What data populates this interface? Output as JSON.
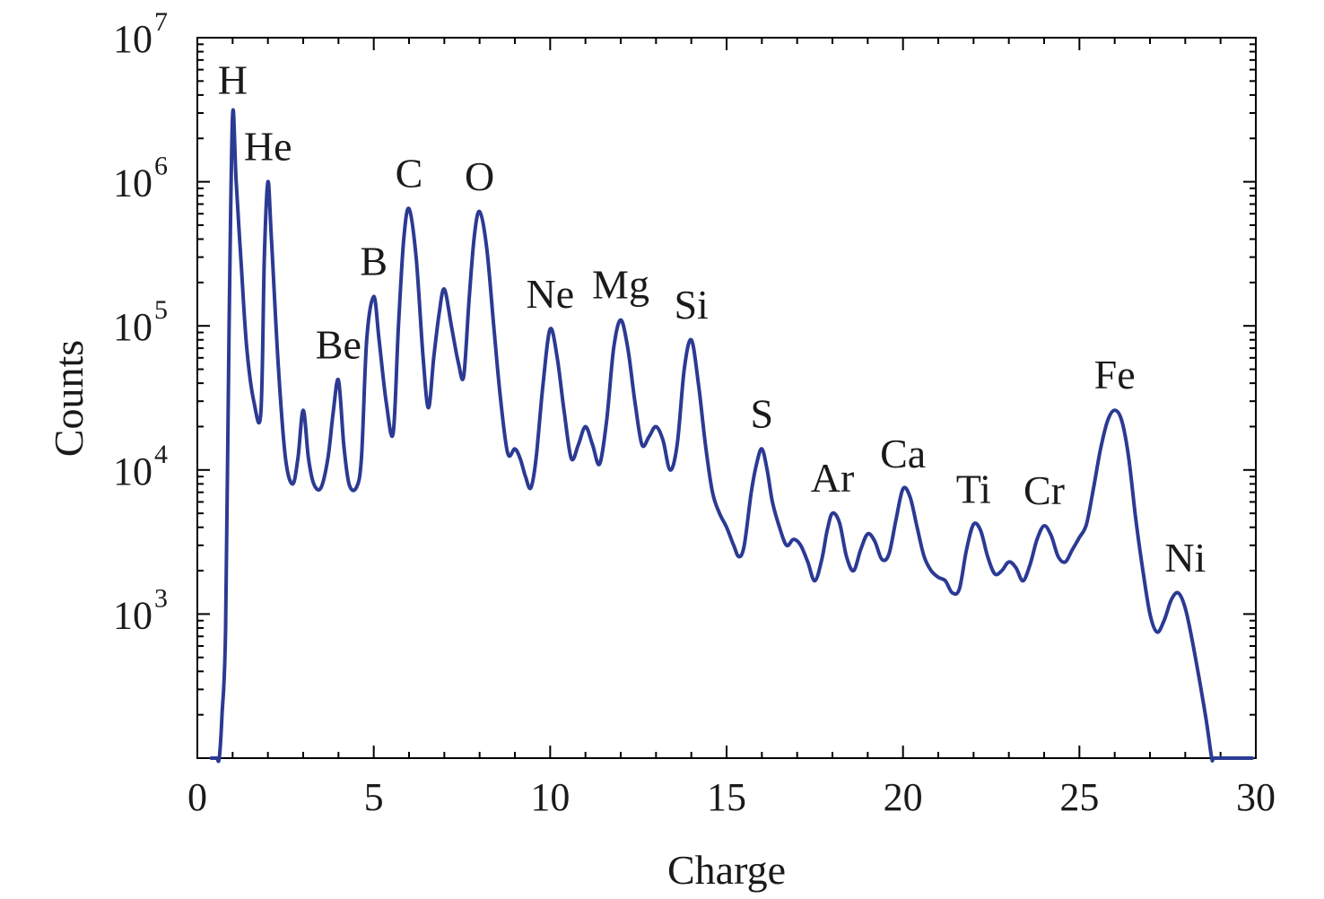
{
  "chart_data": {
    "type": "line",
    "xlabel": "Charge",
    "ylabel": "Counts",
    "xlim": [
      0,
      30
    ],
    "ylim": [
      100,
      10000000
    ],
    "yscale": "log",
    "grid": false,
    "x_ticks": [
      "0",
      "5",
      "10",
      "15",
      "20",
      "25",
      "30"
    ],
    "y_ticks": [
      {
        "base": "10",
        "exp": "3",
        "value": 1000
      },
      {
        "base": "10",
        "exp": "4",
        "value": 10000
      },
      {
        "base": "10",
        "exp": "5",
        "value": 100000
      },
      {
        "base": "10",
        "exp": "6",
        "value": 1000000
      },
      {
        "base": "10",
        "exp": "7",
        "value": 10000000
      }
    ],
    "series": [
      {
        "color": "#2b3a93",
        "x": [
          0.4,
          0.55,
          0.62,
          0.7,
          0.8,
          0.9,
          1.0,
          1.1,
          1.25,
          1.4,
          1.6,
          1.8,
          1.9,
          2.0,
          2.1,
          2.3,
          2.5,
          2.7,
          2.85,
          3.0,
          3.15,
          3.3,
          3.5,
          3.7,
          3.85,
          4.0,
          4.15,
          4.3,
          4.5,
          4.65,
          4.8,
          5.0,
          5.15,
          5.35,
          5.55,
          5.7,
          5.85,
          6.0,
          6.2,
          6.4,
          6.55,
          6.7,
          6.85,
          7.0,
          7.2,
          7.4,
          7.55,
          7.7,
          7.85,
          8.0,
          8.2,
          8.4,
          8.6,
          8.8,
          9.0,
          9.15,
          9.3,
          9.45,
          9.6,
          9.8,
          10.0,
          10.2,
          10.4,
          10.6,
          10.8,
          11.0,
          11.2,
          11.4,
          11.6,
          11.8,
          12.0,
          12.2,
          12.4,
          12.6,
          12.8,
          13.0,
          13.2,
          13.4,
          13.6,
          13.8,
          14.0,
          14.2,
          14.4,
          14.6,
          14.8,
          15.0,
          15.2,
          15.35,
          15.5,
          15.7,
          15.85,
          16.0,
          16.15,
          16.3,
          16.5,
          16.7,
          16.9,
          17.1,
          17.3,
          17.5,
          17.7,
          17.85,
          18.0,
          18.2,
          18.4,
          18.6,
          18.8,
          19.0,
          19.2,
          19.4,
          19.6,
          19.8,
          20.0,
          20.2,
          20.4,
          20.6,
          20.8,
          21.0,
          21.2,
          21.4,
          21.6,
          21.8,
          22.0,
          22.2,
          22.4,
          22.6,
          22.8,
          23.0,
          23.2,
          23.4,
          23.6,
          23.8,
          24.0,
          24.2,
          24.4,
          24.6,
          24.8,
          25.0,
          25.2,
          25.4,
          25.6,
          25.8,
          26.0,
          26.2,
          26.4,
          26.6,
          26.8,
          27.0,
          27.2,
          27.4,
          27.6,
          27.8,
          28.0,
          28.2,
          28.4,
          28.6,
          28.75,
          28.8,
          29.0,
          29.3,
          29.6,
          29.9
        ],
        "y": [
          100,
          100,
          100,
          200,
          800,
          100000,
          2900000,
          1000000,
          250000,
          70000,
          30000,
          25000,
          300000,
          1000000,
          400000,
          50000,
          12000,
          8000,
          12000,
          26000,
          12000,
          8000,
          7500,
          12000,
          25000,
          42000,
          15000,
          8000,
          7500,
          12000,
          80000,
          160000,
          80000,
          30000,
          18000,
          100000,
          400000,
          650000,
          300000,
          60000,
          27000,
          60000,
          120000,
          180000,
          100000,
          55000,
          45000,
          150000,
          420000,
          620000,
          350000,
          100000,
          30000,
          13000,
          14000,
          12000,
          9000,
          7500,
          12000,
          40000,
          95000,
          60000,
          25000,
          12000,
          15000,
          20000,
          15000,
          11000,
          22000,
          70000,
          110000,
          70000,
          30000,
          15000,
          17000,
          20000,
          16000,
          10000,
          15000,
          50000,
          80000,
          40000,
          15000,
          7000,
          5000,
          4000,
          3000,
          2500,
          3000,
          7000,
          11000,
          14000,
          10000,
          6000,
          4000,
          3000,
          3300,
          3000,
          2300,
          1700,
          2400,
          3800,
          5000,
          4300,
          2500,
          2000,
          2800,
          3600,
          3200,
          2400,
          2600,
          4500,
          7400,
          6500,
          4000,
          2500,
          2000,
          1800,
          1700,
          1400,
          1500,
          2800,
          4200,
          3800,
          2500,
          1900,
          2000,
          2300,
          2100,
          1700,
          2200,
          3300,
          4100,
          3500,
          2500,
          2300,
          2800,
          3400,
          4200,
          7500,
          14000,
          22000,
          26000,
          22000,
          12000,
          4500,
          2000,
          1000,
          750,
          900,
          1250,
          1400,
          1100,
          650,
          350,
          180,
          100,
          100,
          100,
          100,
          100,
          100
        ]
      }
    ],
    "peak_labels": [
      {
        "text": "H",
        "x": 1.0
      },
      {
        "text": "He",
        "x": 2.0
      },
      {
        "text": "Be",
        "x": 4.0
      },
      {
        "text": "B",
        "x": 5.0
      },
      {
        "text": "C",
        "x": 6.0
      },
      {
        "text": "O",
        "x": 8.0
      },
      {
        "text": "Ne",
        "x": 10.0
      },
      {
        "text": "Mg",
        "x": 12.0
      },
      {
        "text": "Si",
        "x": 14.0
      },
      {
        "text": "S",
        "x": 16.0
      },
      {
        "text": "Ar",
        "x": 18.0
      },
      {
        "text": "Ca",
        "x": 20.0
      },
      {
        "text": "Ti",
        "x": 22.0
      },
      {
        "text": "Cr",
        "x": 24.0
      },
      {
        "text": "Fe",
        "x": 26.0
      },
      {
        "text": "Ni",
        "x": 28.0
      }
    ]
  }
}
